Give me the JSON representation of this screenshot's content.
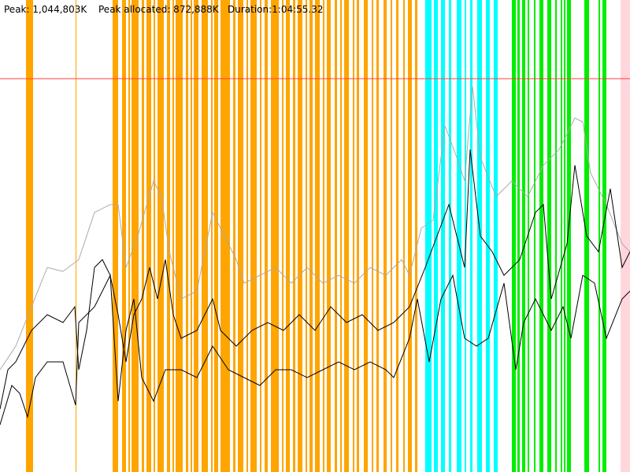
{
  "header": {
    "peak": "Peak: 1,044,803K",
    "peak_allocated": "Peak allocated: 872,888K",
    "duration": "Duration:1:04:55.32"
  }
}
